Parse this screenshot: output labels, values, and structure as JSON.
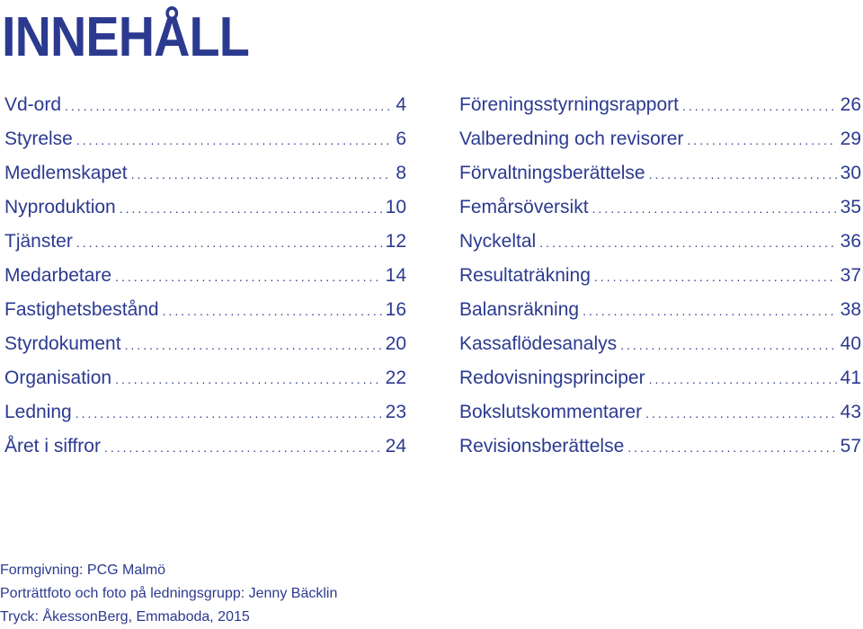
{
  "title": "INNEHÅLL",
  "toc_left": [
    {
      "label": "Vd-ord",
      "page": "4"
    },
    {
      "label": "Styrelse",
      "page": "6"
    },
    {
      "label": "Medlemskapet",
      "page": "8"
    },
    {
      "label": "Nyproduktion",
      "page": "10"
    },
    {
      "label": "Tjänster",
      "page": "12"
    },
    {
      "label": "Medarbetare",
      "page": "14"
    },
    {
      "label": "Fastighetsbestånd",
      "page": "16"
    },
    {
      "label": "Styrdokument",
      "page": "20"
    },
    {
      "label": "Organisation",
      "page": "22"
    },
    {
      "label": "Ledning",
      "page": "23"
    },
    {
      "label": "Året i siffror",
      "page": "24"
    }
  ],
  "toc_right": [
    {
      "label": "Föreningsstyrningsrapport",
      "page": "26"
    },
    {
      "label": "Valberedning och revisorer",
      "page": "29"
    },
    {
      "label": "Förvaltningsberättelse",
      "page": "30"
    },
    {
      "label": "Femårsöversikt",
      "page": "35"
    },
    {
      "label": "Nyckeltal",
      "page": "36"
    },
    {
      "label": "Resultaträkning",
      "page": "37"
    },
    {
      "label": "Balansräkning",
      "page": "38"
    },
    {
      "label": "Kassaflödesanalys",
      "page": "40"
    },
    {
      "label": "Redovisningsprinciper",
      "page": "41"
    },
    {
      "label": "Bokslutskommentarer",
      "page": "43"
    },
    {
      "label": "Revisionsberättelse",
      "page": "57"
    }
  ],
  "credits": [
    "Formgivning: PCG Malmö",
    "Porträttfoto och foto på ledningsgrupp: Jenny Bäcklin",
    "Tryck: ÅkessonBerg, Emmaboda, 2015"
  ],
  "colors": {
    "text": "#2b3a8f",
    "background": "#ffffff"
  }
}
